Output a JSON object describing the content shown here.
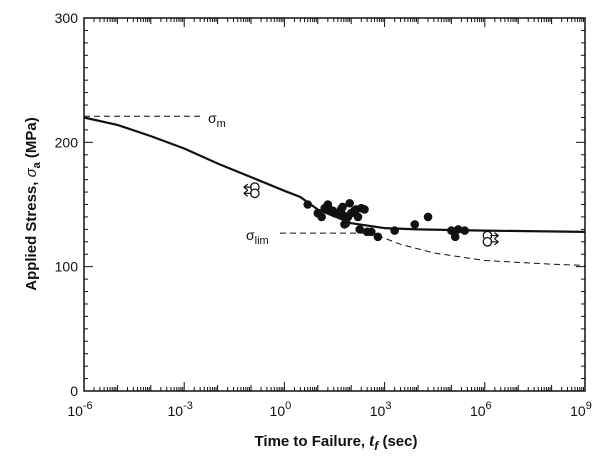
{
  "chart_data": {
    "type": "scatter",
    "xscale": "log",
    "xlim": [
      1e-06,
      1000000000.0
    ],
    "ylim": [
      0,
      300
    ],
    "x_tick_labels": [
      "10",
      "10",
      "10",
      "10",
      "10",
      "10"
    ],
    "x_tick_exponents": [
      "-6",
      "-3",
      "0",
      "3",
      "6",
      "9"
    ],
    "y_tick_labels": [
      "0",
      "100",
      "200",
      "300"
    ],
    "xlabel_prefix": "Time to Failure, ",
    "xlabel_var": "t",
    "xlabel_sub": "f",
    "xlabel_suffix": " (sec)",
    "ylabel_prefix": "Applied Stress, ",
    "ylabel_var": "σ",
    "ylabel_sub": "a",
    "ylabel_suffix": " (MPa)",
    "annotations": {
      "sigma_m": {
        "symbol": "σ",
        "sub": "m"
      },
      "sigma_lim": {
        "symbol": "σ",
        "sub": "lim"
      }
    },
    "reference_lines": {
      "sigma_m_level": 221,
      "sigma_lim_level": 127
    },
    "series": [
      {
        "role": "fit-solid",
        "points": [
          [
            1e-06,
            220
          ],
          [
            1e-05,
            214
          ],
          [
            0.0001,
            205
          ],
          [
            0.001,
            195
          ],
          [
            0.01,
            183
          ],
          [
            0.1,
            172
          ],
          [
            1,
            161
          ],
          [
            3,
            156
          ],
          [
            10,
            146
          ],
          [
            100,
            135
          ],
          [
            1000,
            131
          ],
          [
            10000.0,
            130
          ],
          [
            1000000.0,
            129
          ],
          [
            1000000000.0,
            128
          ]
        ]
      },
      {
        "role": "lower-bound-dashed",
        "points": [
          [
            316,
            128
          ],
          [
            3000,
            118
          ],
          [
            30000.0,
            111
          ],
          [
            1000000.0,
            105
          ],
          [
            100000000.0,
            102
          ],
          [
            1000000000.0,
            101
          ]
        ]
      },
      {
        "role": "failure-data-filled",
        "points": [
          [
            5,
            150
          ],
          [
            10,
            143
          ],
          [
            13,
            140
          ],
          [
            16,
            147
          ],
          [
            20,
            150
          ],
          [
            22,
            146
          ],
          [
            28,
            145
          ],
          [
            32,
            143
          ],
          [
            40,
            143
          ],
          [
            50,
            146
          ],
          [
            55,
            148
          ],
          [
            60,
            141
          ],
          [
            63,
            134
          ],
          [
            70,
            135
          ],
          [
            80,
            140
          ],
          [
            90,
            151
          ],
          [
            100,
            143
          ],
          [
            125,
            145
          ],
          [
            140,
            146
          ],
          [
            160,
            140
          ],
          [
            180,
            130
          ],
          [
            200,
            147
          ],
          [
            250,
            146
          ],
          [
            300,
            128
          ],
          [
            400,
            128
          ],
          [
            630,
            124
          ],
          [
            2000,
            129
          ],
          [
            8000,
            134
          ],
          [
            20000.0,
            140
          ],
          [
            100000.0,
            129
          ],
          [
            130000.0,
            124
          ],
          [
            160000.0,
            130
          ],
          [
            250000.0,
            129
          ]
        ]
      },
      {
        "role": "runout-open",
        "points": [
          [
            0.13,
            164
          ],
          [
            0.13,
            159
          ],
          [
            1200000.0,
            125
          ],
          [
            1200000.0,
            120
          ]
        ]
      }
    ]
  }
}
